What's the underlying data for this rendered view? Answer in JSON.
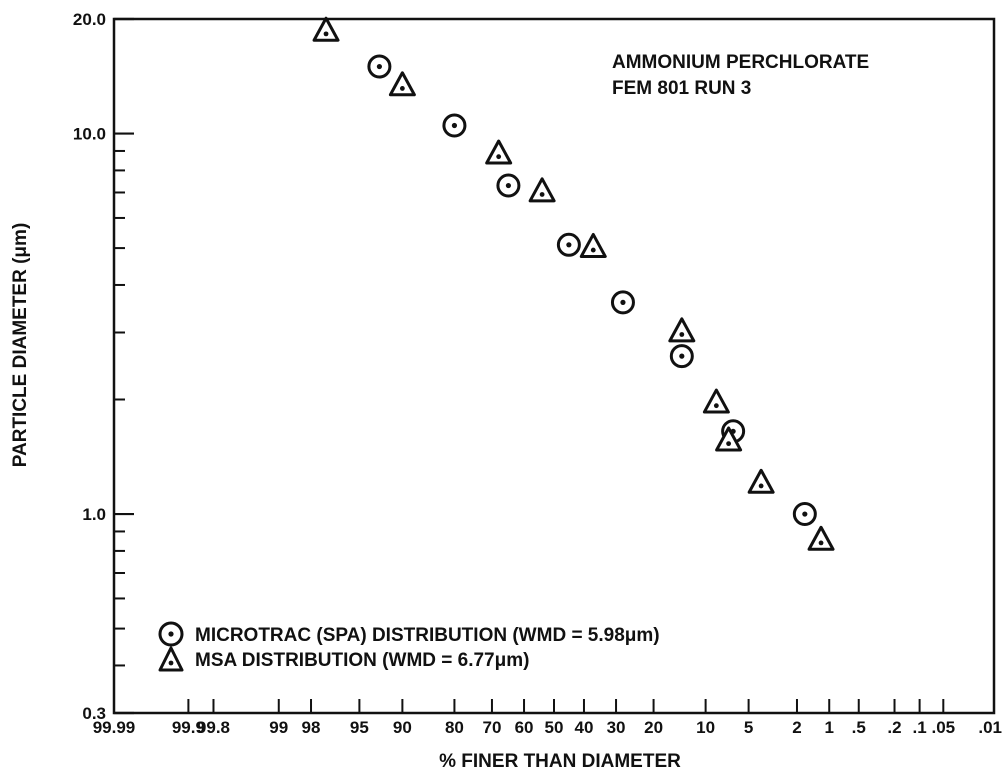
{
  "chart_data": {
    "type": "scatter",
    "title": "",
    "xlabel": "% FINER THAN DIAMETER",
    "ylabel": "PARTICLE DIAMETER (μm)",
    "x_scale": "probability",
    "y_scale": "log",
    "ylim": [
      0.3,
      20.0
    ],
    "xlim": [
      99.99,
      0.01
    ],
    "grid": false,
    "legend_position": "bottom-left",
    "x_ticks": [
      {
        "value": 99.99,
        "label": "99.99"
      },
      {
        "value": 99.9,
        "label": "99.9"
      },
      {
        "value": 99.8,
        "label": "99.8"
      },
      {
        "value": 99,
        "label": "99"
      },
      {
        "value": 98,
        "label": "98"
      },
      {
        "value": 95,
        "label": "95"
      },
      {
        "value": 90,
        "label": "90"
      },
      {
        "value": 80,
        "label": "80"
      },
      {
        "value": 70,
        "label": "70"
      },
      {
        "value": 60,
        "label": "60"
      },
      {
        "value": 50,
        "label": "50"
      },
      {
        "value": 40,
        "label": "40"
      },
      {
        "value": 30,
        "label": "30"
      },
      {
        "value": 20,
        "label": "20"
      },
      {
        "value": 10,
        "label": "10"
      },
      {
        "value": 5,
        "label": "5"
      },
      {
        "value": 2,
        "label": "2"
      },
      {
        "value": 1,
        "label": "1"
      },
      {
        "value": 0.5,
        "label": ".5"
      },
      {
        "value": 0.2,
        "label": ".2"
      },
      {
        "value": 0.1,
        "label": ".1"
      },
      {
        "value": 0.05,
        "label": ".05"
      },
      {
        "value": 0.01,
        "label": ".01"
      }
    ],
    "y_tick_labels": [
      {
        "value": 20.0,
        "label": "20.0"
      },
      {
        "value": 10.0,
        "label": "10.0"
      },
      {
        "value": 1.0,
        "label": "1.0"
      },
      {
        "value": 0.3,
        "label": "0.3"
      }
    ],
    "y_minor_ticks": [
      0.4,
      0.5,
      0.6,
      0.7,
      0.8,
      0.9,
      2,
      3,
      4,
      5,
      6,
      7,
      8,
      9
    ],
    "annotation": [
      "AMMONIUM PERCHLORATE",
      "FEM 801 RUN 3"
    ],
    "series": [
      {
        "name": "MICROTRAC (SPA) DISTRIBUTION (WMD = 5.98μm)",
        "marker": "circle-dot",
        "points": [
          {
            "x": 93,
            "y": 15.0
          },
          {
            "x": 80,
            "y": 10.5
          },
          {
            "x": 65,
            "y": 7.3
          },
          {
            "x": 45,
            "y": 5.1
          },
          {
            "x": 28,
            "y": 3.6
          },
          {
            "x": 14,
            "y": 2.6
          },
          {
            "x": 6.5,
            "y": 1.65
          },
          {
            "x": 1.7,
            "y": 1.0
          }
        ]
      },
      {
        "name": "MSA DISTRIBUTION (WMD = 6.77μm)",
        "marker": "triangle-dot",
        "points": [
          {
            "x": 97.3,
            "y": 18.5
          },
          {
            "x": 90,
            "y": 13.3
          },
          {
            "x": 68,
            "y": 8.8
          },
          {
            "x": 54,
            "y": 7.0
          },
          {
            "x": 37,
            "y": 5.0
          },
          {
            "x": 14,
            "y": 3.0
          },
          {
            "x": 8.5,
            "y": 1.95
          },
          {
            "x": 7,
            "y": 1.55
          },
          {
            "x": 4,
            "y": 1.2
          },
          {
            "x": 1.2,
            "y": 0.85
          }
        ]
      }
    ]
  }
}
